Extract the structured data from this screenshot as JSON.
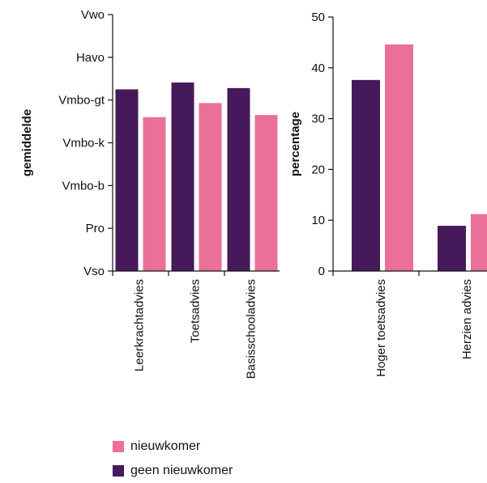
{
  "colors": {
    "geen_nieuwkomer": "#461a5a",
    "nieuwkomer": "#ea7098",
    "axis": "#111111"
  },
  "legend": {
    "items": [
      {
        "label": "nieuwkomer",
        "color": "#ea7098"
      },
      {
        "label": "geen nieuwkomer",
        "color": "#461a5a"
      }
    ]
  },
  "chart_data": [
    {
      "type": "bar",
      "ylabel": "gemiddelde",
      "categories": [
        "Leerkrachtadvies",
        "Toetsadvies",
        "Basisschooladvies"
      ],
      "ylim": [
        0,
        6
      ],
      "yticks": [
        0,
        1,
        2,
        3,
        4,
        5,
        6
      ],
      "ytick_labels": [
        "Vso",
        "Pro",
        "Vmbo-b",
        "Vmbo-k",
        "Vmbo-gt",
        "Havo",
        "Vwo"
      ],
      "series": [
        {
          "name": "geen nieuwkomer",
          "values": [
            4.25,
            4.41,
            4.28
          ]
        },
        {
          "name": "nieuwkomer",
          "values": [
            3.6,
            3.93,
            3.65
          ]
        }
      ]
    },
    {
      "type": "bar",
      "ylabel": "percentage",
      "categories": [
        "Hoger toetsadvies",
        "Herzien advies"
      ],
      "ylim": [
        0,
        50
      ],
      "yticks": [
        0,
        10,
        20,
        30,
        40,
        50
      ],
      "ytick_labels": [
        "0",
        "10",
        "20",
        "30",
        "40",
        "50"
      ],
      "series": [
        {
          "name": "geen nieuwkomer",
          "values": [
            37.6,
            8.9
          ]
        },
        {
          "name": "nieuwkomer",
          "values": [
            44.6,
            11.2
          ]
        }
      ]
    }
  ]
}
